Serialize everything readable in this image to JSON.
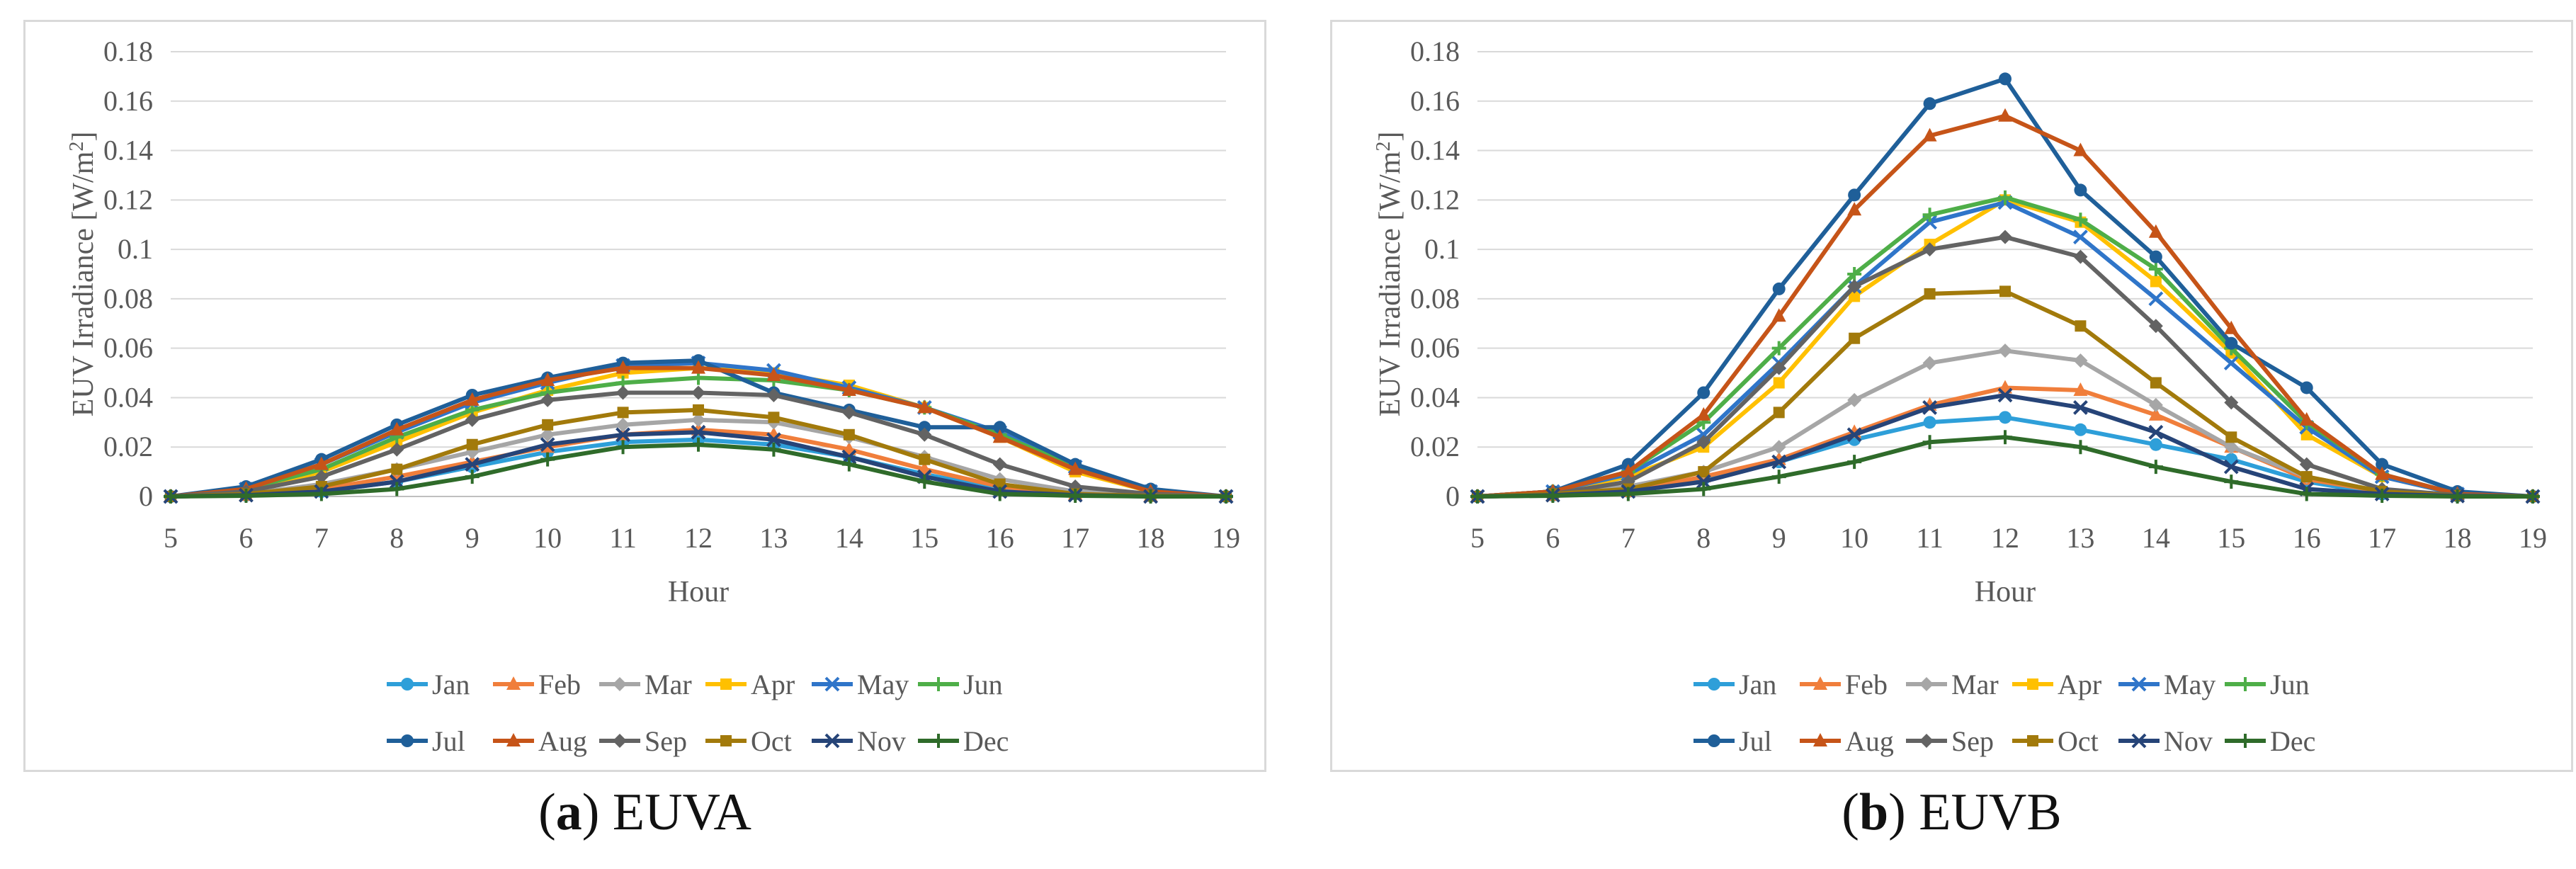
{
  "colors": {
    "Jan": "#2e9fd9",
    "Feb": "#f07e3b",
    "Mar": "#a6a6a6",
    "Apr": "#ffc000",
    "May": "#2f75c9",
    "Jun": "#4eae48",
    "Jul": "#1f5f99",
    "Aug": "#c65418",
    "Sep": "#636363",
    "Oct": "#a27a0b",
    "Nov": "#264478",
    "Dec": "#2f6b2a"
  },
  "markers": {
    "Jan": "circle",
    "Feb": "triangle",
    "Mar": "diamond",
    "Apr": "square",
    "May": "x",
    "Jun": "plus",
    "Jul": "circle",
    "Aug": "triangle",
    "Sep": "diamond",
    "Oct": "square",
    "Nov": "x",
    "Dec": "plus"
  },
  "chart_data": [
    {
      "type": "line",
      "panel_letter": "a",
      "panel_name": "EUVA",
      "xlabel": "Hour",
      "ylabel": "EUV Irradiance [W/m²]",
      "ylabel_base": "EUV Irradiance [W/m",
      "ylabel_sup": "2",
      "ylabel_end": "]",
      "xlim": [
        5,
        19
      ],
      "ylim": [
        0,
        0.18
      ],
      "x_ticks": [
        5,
        6,
        7,
        8,
        9,
        10,
        11,
        12,
        13,
        14,
        15,
        16,
        17,
        18,
        19
      ],
      "y_ticks": [
        "0",
        "0.02",
        "0.04",
        "0.06",
        "0.08",
        "0.1",
        "0.12",
        "0.14",
        "0.16",
        "0.18"
      ],
      "gridlines": "horizontal",
      "legend_position": "bottom",
      "x": [
        5,
        6,
        7,
        8,
        9,
        10,
        11,
        12,
        13,
        14,
        15,
        16,
        17,
        18,
        19
      ],
      "series": [
        {
          "name": "Jan",
          "values": [
            0,
            0.0005,
            0.002,
            0.006,
            0.012,
            0.018,
            0.022,
            0.023,
            0.021,
            0.016,
            0.009,
            0.003,
            0.001,
            0.0002,
            0
          ]
        },
        {
          "name": "Feb",
          "values": [
            0,
            0.0005,
            0.003,
            0.008,
            0.014,
            0.02,
            0.025,
            0.027,
            0.025,
            0.019,
            0.011,
            0.004,
            0.001,
            0.0002,
            0
          ]
        },
        {
          "name": "Mar",
          "values": [
            0,
            0.001,
            0.005,
            0.011,
            0.018,
            0.025,
            0.029,
            0.031,
            0.03,
            0.024,
            0.016,
            0.007,
            0.002,
            0.0005,
            0
          ]
        },
        {
          "name": "Apr",
          "values": [
            0,
            0.002,
            0.01,
            0.022,
            0.034,
            0.043,
            0.05,
            0.052,
            0.05,
            0.045,
            0.036,
            0.024,
            0.01,
            0.002,
            0
          ]
        },
        {
          "name": "May",
          "values": [
            0,
            0.003,
            0.013,
            0.026,
            0.038,
            0.046,
            0.053,
            0.054,
            0.051,
            0.044,
            0.036,
            0.026,
            0.012,
            0.002,
            0
          ]
        },
        {
          "name": "Jun",
          "values": [
            0,
            0.003,
            0.011,
            0.024,
            0.035,
            0.042,
            0.046,
            0.048,
            0.047,
            0.043,
            0.036,
            0.025,
            0.012,
            0.002,
            0
          ]
        },
        {
          "name": "Jul",
          "values": [
            0,
            0.004,
            0.015,
            0.029,
            0.041,
            0.048,
            0.054,
            0.055,
            0.042,
            0.035,
            0.028,
            0.028,
            0.013,
            0.003,
            0
          ]
        },
        {
          "name": "Aug",
          "values": [
            0,
            0.003,
            0.013,
            0.027,
            0.039,
            0.047,
            0.052,
            0.052,
            0.049,
            0.043,
            0.036,
            0.024,
            0.011,
            0.002,
            0
          ]
        },
        {
          "name": "Sep",
          "values": [
            0,
            0.002,
            0.008,
            0.019,
            0.031,
            0.039,
            0.042,
            0.042,
            0.041,
            0.034,
            0.025,
            0.013,
            0.004,
            0.001,
            0
          ]
        },
        {
          "name": "Oct",
          "values": [
            0,
            0.001,
            0.004,
            0.011,
            0.021,
            0.029,
            0.034,
            0.035,
            0.032,
            0.025,
            0.015,
            0.005,
            0.001,
            0.0002,
            0
          ]
        },
        {
          "name": "Nov",
          "values": [
            0,
            0.0005,
            0.002,
            0.006,
            0.013,
            0.021,
            0.025,
            0.026,
            0.023,
            0.016,
            0.008,
            0.002,
            0.0005,
            0,
            0
          ]
        },
        {
          "name": "Dec",
          "values": [
            0,
            0.0003,
            0.001,
            0.003,
            0.008,
            0.015,
            0.02,
            0.021,
            0.019,
            0.013,
            0.006,
            0.001,
            0.0003,
            0,
            0
          ]
        }
      ]
    },
    {
      "type": "line",
      "panel_letter": "b",
      "panel_name": "EUVB",
      "xlabel": "Hour",
      "ylabel": "EUV Irradiance [W/m²]",
      "ylabel_base": "EUV Irradiance [W/m",
      "ylabel_sup": "2",
      "ylabel_end": "]",
      "xlim": [
        5,
        19
      ],
      "ylim": [
        0,
        0.18
      ],
      "x_ticks": [
        5,
        6,
        7,
        8,
        9,
        10,
        11,
        12,
        13,
        14,
        15,
        16,
        17,
        18,
        19
      ],
      "y_ticks": [
        "0",
        "0.02",
        "0.04",
        "0.06",
        "0.08",
        "0.1",
        "0.12",
        "0.14",
        "0.16",
        "0.18"
      ],
      "gridlines": "horizontal",
      "legend_position": "bottom",
      "x": [
        5,
        6,
        7,
        8,
        9,
        10,
        11,
        12,
        13,
        14,
        15,
        16,
        17,
        18,
        19
      ],
      "series": [
        {
          "name": "Jan",
          "values": [
            0,
            0.0005,
            0.002,
            0.007,
            0.014,
            0.023,
            0.03,
            0.032,
            0.027,
            0.021,
            0.015,
            0.006,
            0.001,
            0.0002,
            0
          ]
        },
        {
          "name": "Feb",
          "values": [
            0,
            0.0005,
            0.002,
            0.008,
            0.015,
            0.026,
            0.037,
            0.044,
            0.043,
            0.033,
            0.02,
            0.007,
            0.002,
            0.0003,
            0
          ]
        },
        {
          "name": "Mar",
          "values": [
            0,
            0.001,
            0.004,
            0.01,
            0.02,
            0.039,
            0.054,
            0.059,
            0.055,
            0.037,
            0.02,
            0.008,
            0.002,
            0.0004,
            0
          ]
        },
        {
          "name": "Apr",
          "values": [
            0,
            0.002,
            0.008,
            0.02,
            0.046,
            0.081,
            0.102,
            0.12,
            0.111,
            0.087,
            0.058,
            0.025,
            0.008,
            0.001,
            0
          ]
        },
        {
          "name": "May",
          "values": [
            0,
            0.002,
            0.009,
            0.025,
            0.054,
            0.085,
            0.111,
            0.119,
            0.105,
            0.08,
            0.054,
            0.028,
            0.008,
            0.001,
            0
          ]
        },
        {
          "name": "Jun",
          "values": [
            0,
            0.002,
            0.01,
            0.03,
            0.06,
            0.09,
            0.114,
            0.121,
            0.112,
            0.092,
            0.06,
            0.03,
            0.009,
            0.001,
            0
          ]
        },
        {
          "name": "Jul",
          "values": [
            0,
            0.002,
            0.013,
            0.042,
            0.084,
            0.122,
            0.159,
            0.169,
            0.124,
            0.097,
            0.062,
            0.044,
            0.013,
            0.002,
            0
          ]
        },
        {
          "name": "Aug",
          "values": [
            0,
            0.002,
            0.01,
            0.033,
            0.073,
            0.116,
            0.146,
            0.154,
            0.14,
            0.107,
            0.068,
            0.031,
            0.009,
            0.001,
            0
          ]
        },
        {
          "name": "Sep",
          "values": [
            0,
            0.001,
            0.006,
            0.022,
            0.052,
            0.085,
            0.1,
            0.105,
            0.097,
            0.069,
            0.038,
            0.013,
            0.003,
            0.0005,
            0
          ]
        },
        {
          "name": "Oct",
          "values": [
            0,
            0.001,
            0.003,
            0.01,
            0.034,
            0.064,
            0.082,
            0.083,
            0.069,
            0.046,
            0.024,
            0.008,
            0.002,
            0.0003,
            0
          ]
        },
        {
          "name": "Nov",
          "values": [
            0,
            0.0005,
            0.002,
            0.006,
            0.014,
            0.025,
            0.036,
            0.041,
            0.036,
            0.026,
            0.012,
            0.003,
            0.001,
            0.0002,
            0
          ]
        },
        {
          "name": "Dec",
          "values": [
            0,
            0.0003,
            0.001,
            0.003,
            0.008,
            0.014,
            0.022,
            0.024,
            0.02,
            0.012,
            0.006,
            0.001,
            0.0003,
            0,
            0
          ]
        }
      ]
    }
  ]
}
